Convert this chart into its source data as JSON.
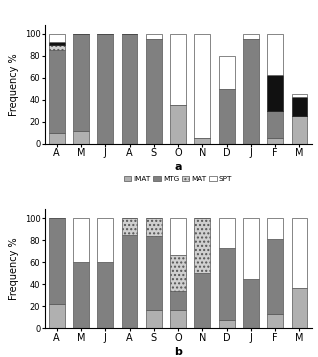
{
  "months": [
    "A",
    "M",
    "J",
    "A",
    "S",
    "O",
    "N",
    "D",
    "J",
    "F",
    "M"
  ],
  "top": {
    "IMAT": [
      10,
      12,
      0,
      0,
      0,
      35,
      5,
      0,
      0,
      5,
      25
    ],
    "MTG": [
      75,
      88,
      100,
      100,
      95,
      0,
      0,
      50,
      95,
      25,
      0
    ],
    "MAT": [
      5,
      0,
      0,
      0,
      0,
      0,
      0,
      0,
      0,
      0,
      0
    ],
    "SPW": [
      3,
      0,
      0,
      0,
      0,
      0,
      0,
      0,
      0,
      33,
      18
    ],
    "SPT": [
      7,
      0,
      0,
      0,
      5,
      65,
      95,
      30,
      5,
      37,
      2
    ]
  },
  "bottom": {
    "IMAT": [
      22,
      0,
      0,
      0,
      17,
      17,
      0,
      8,
      0,
      13,
      37
    ],
    "MTG": [
      78,
      60,
      60,
      85,
      67,
      17,
      50,
      65,
      45,
      68,
      0
    ],
    "MAT": [
      0,
      0,
      0,
      15,
      16,
      33,
      50,
      0,
      0,
      0,
      0
    ],
    "SPT": [
      0,
      40,
      40,
      0,
      0,
      33,
      0,
      27,
      55,
      19,
      63
    ]
  },
  "colors": {
    "IMAT": "#b0b0b0",
    "MTG": "#808080",
    "MAT": "#d0d0d0",
    "SPW": "#111111",
    "SPT": "#ffffff"
  },
  "hatches": {
    "IMAT": "",
    "MTG": "",
    "MAT": "....",
    "SPW": "",
    "SPT": ""
  },
  "edgecolor": "#555555",
  "edgecolor_spw": "#222222",
  "ylabel": "Frequency %",
  "label_a": "a",
  "label_b": "b"
}
